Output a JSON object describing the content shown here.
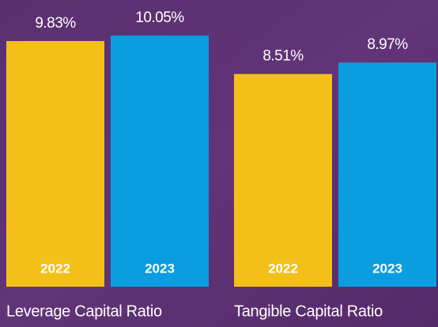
{
  "chart_data": [
    {
      "type": "bar",
      "title": "Leverage Capital Ratio",
      "categories": [
        "2022",
        "2023"
      ],
      "values": [
        9.83,
        10.05
      ],
      "value_labels": [
        "9.83%",
        "10.05%"
      ],
      "colors": [
        "#f5bf1a",
        "#0a9de0"
      ]
    },
    {
      "type": "bar",
      "title": "Tangible Capital Ratio",
      "categories": [
        "2022",
        "2023"
      ],
      "values": [
        8.51,
        8.97
      ],
      "value_labels": [
        "8.51%",
        "8.97%"
      ],
      "colors": [
        "#f5bf1a",
        "#0a9de0"
      ]
    }
  ]
}
